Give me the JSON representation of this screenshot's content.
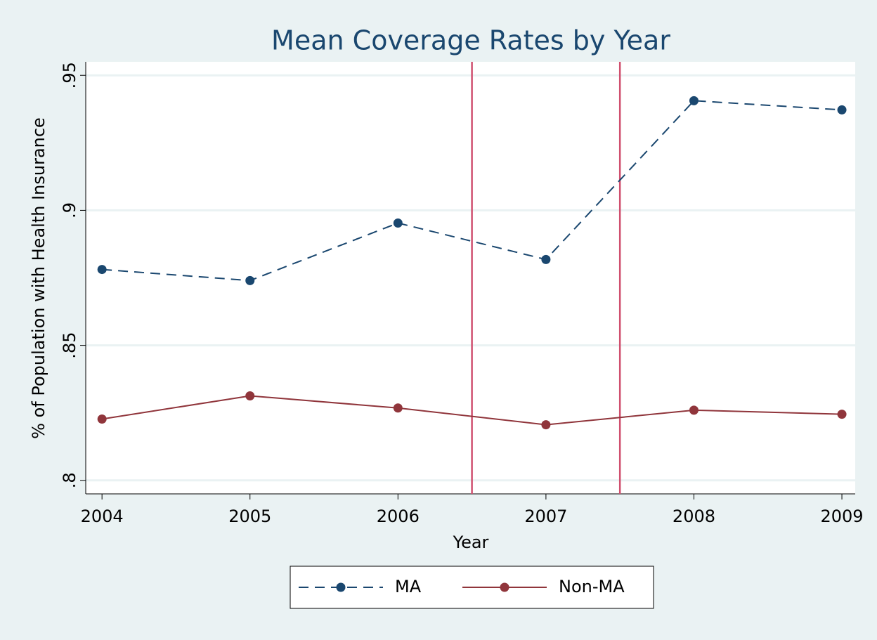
{
  "chart_data": {
    "type": "line",
    "title": "Mean Coverage Rates by Year",
    "x_label": "Year",
    "y_label": "% of Population with Health Insurance",
    "x": [
      2004,
      2005,
      2006,
      2007,
      2008,
      2009
    ],
    "xlim": [
      2003.89,
      2009.09
    ],
    "xticks": [
      2004,
      2005,
      2006,
      2007,
      2008,
      2009
    ],
    "ylim": [
      0.795,
      0.955
    ],
    "yticks": [
      {
        "value": 0.8,
        "label": ".8"
      },
      {
        "value": 0.85,
        "label": ".85"
      },
      {
        "value": 0.9,
        "label": ".9"
      },
      {
        "value": 0.95,
        "label": ".95"
      }
    ],
    "grid": true,
    "vlines": [
      2006.5,
      2007.5
    ],
    "vline_color": "#d0506f",
    "legend_position": "bottom",
    "series": [
      {
        "name": "MA",
        "color": "#1a476f",
        "line_style": "dashed",
        "values": [
          0.8781,
          0.874,
          0.8953,
          0.8818,
          0.9406,
          0.9372
        ]
      },
      {
        "name": "Non-MA",
        "color": "#90353b",
        "line_style": "solid",
        "values": [
          0.8227,
          0.8313,
          0.8268,
          0.8206,
          0.826,
          0.8245
        ]
      }
    ]
  }
}
